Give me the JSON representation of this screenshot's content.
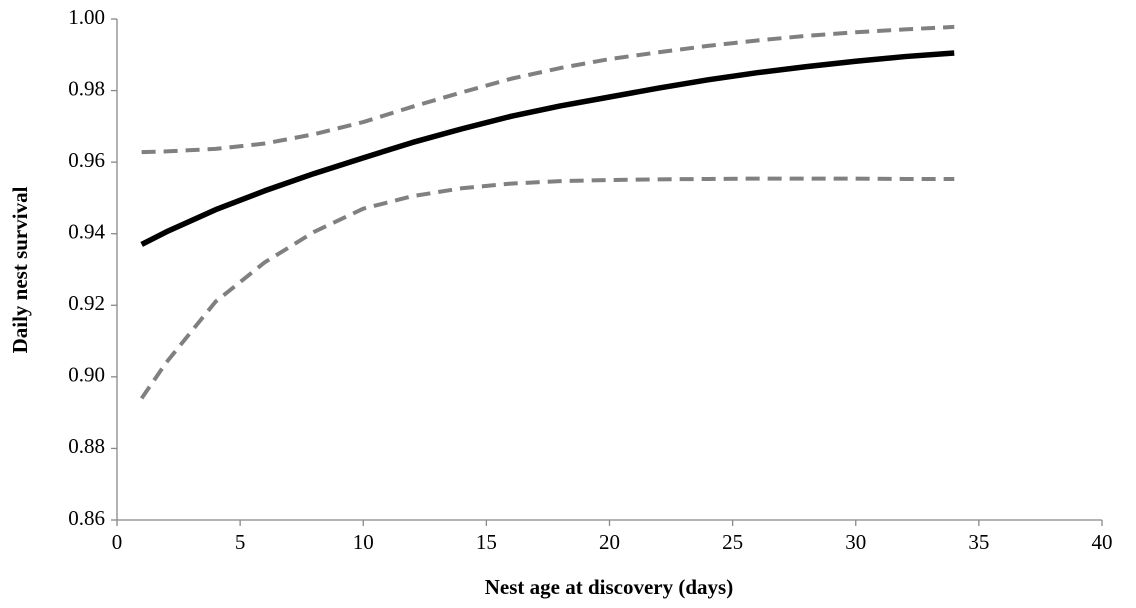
{
  "chart_data": {
    "type": "line",
    "x_label": "Nest age at discovery (days)",
    "y_label": "Daily nest survival",
    "x": [
      1,
      2,
      4,
      6,
      8,
      10,
      12,
      14,
      16,
      18,
      20,
      22,
      24,
      26,
      28,
      30,
      32,
      34
    ],
    "series": [
      {
        "color": "#000000",
        "dashed": false,
        "width": 5.5,
        "values": [
          0.937,
          0.9405,
          0.9467,
          0.952,
          0.9568,
          0.9612,
          0.9655,
          0.9693,
          0.9728,
          0.9757,
          0.9782,
          0.9807,
          0.983,
          0.985,
          0.9867,
          0.9882,
          0.9895,
          0.9905
        ]
      },
      {
        "color": "#808080",
        "dashed": true,
        "width": 4,
        "values": [
          0.9628,
          0.963,
          0.9637,
          0.9652,
          0.9678,
          0.9712,
          0.9755,
          0.9795,
          0.9833,
          0.9863,
          0.9888,
          0.9907,
          0.9925,
          0.994,
          0.9953,
          0.9963,
          0.9971,
          0.9978
        ]
      },
      {
        "color": "#808080",
        "dashed": true,
        "width": 4,
        "values": [
          0.894,
          0.904,
          0.921,
          0.932,
          0.9405,
          0.947,
          0.9505,
          0.9527,
          0.954,
          0.9547,
          0.955,
          0.9552,
          0.9553,
          0.9554,
          0.9554,
          0.9554,
          0.9553,
          0.9553
        ]
      }
    ],
    "xlim": [
      0,
      40
    ],
    "xticks": [
      0,
      5,
      10,
      15,
      20,
      25,
      30,
      35,
      40
    ],
    "ylim": [
      0.86,
      1
    ],
    "yticks": [
      0.86,
      0.88,
      {
        "value": 0.9,
        "label": "0.90"
      },
      0.92,
      0.94,
      0.96,
      0.98,
      {
        "value": 1,
        "label": "1.00"
      }
    ],
    "grid": false
  }
}
